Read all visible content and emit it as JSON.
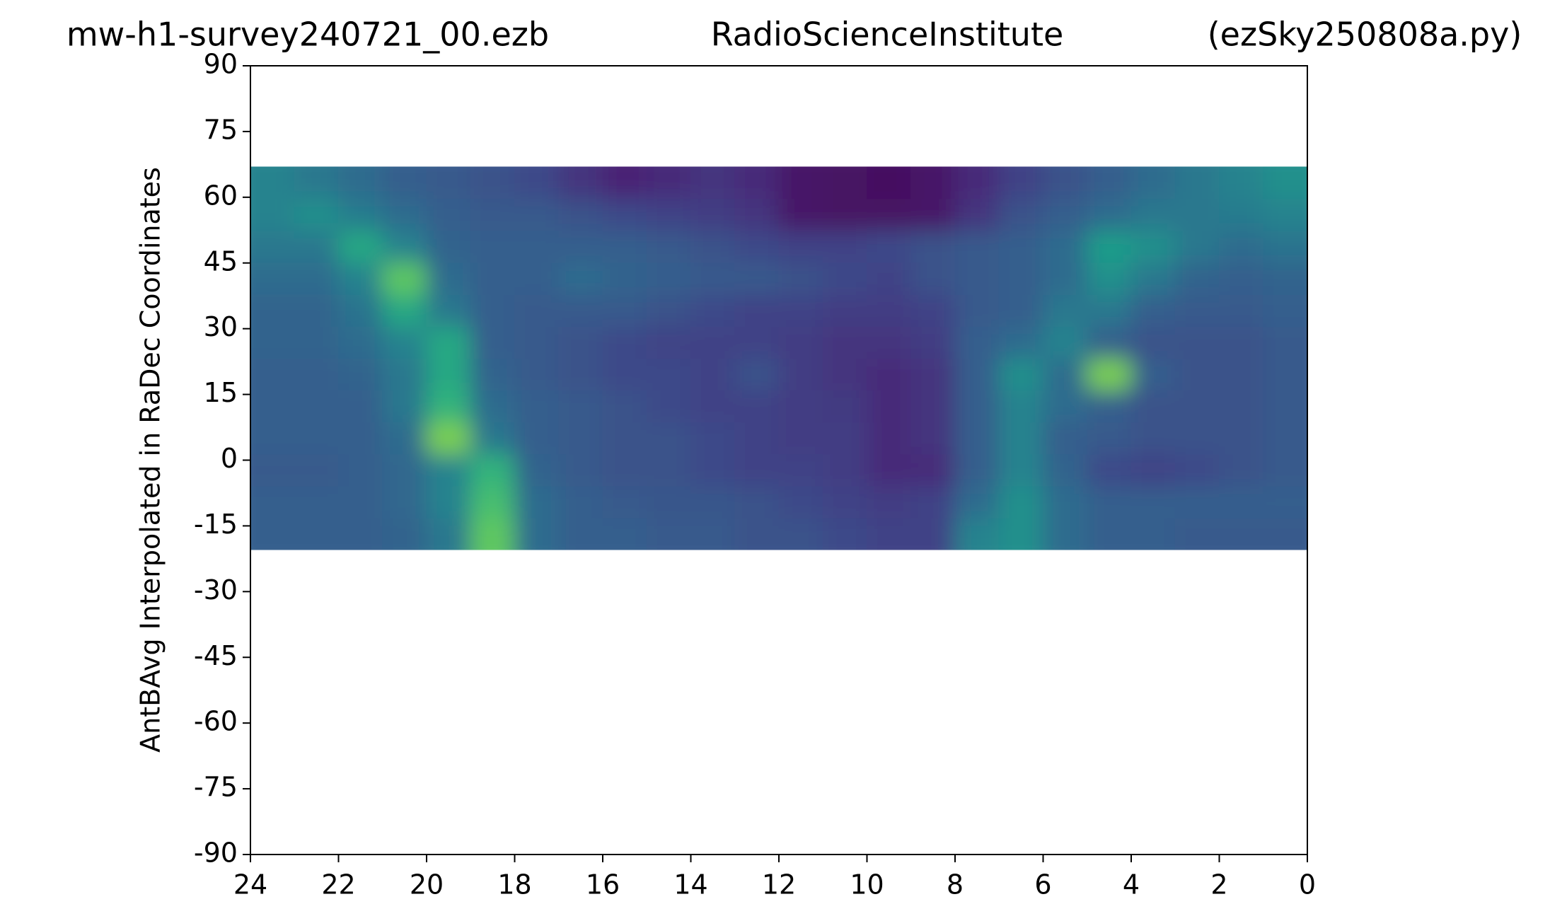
{
  "chart_data": {
    "type": "heatmap",
    "title_left": "mw-h1-survey240721_00.ezb",
    "title": "RadioScienceInstitute",
    "title_right": "(ezSky250808a.py)",
    "ylabel": "AntBAvg Interpolated in RaDec Coordinates",
    "colormap": "viridis",
    "xlim": [
      24,
      0
    ],
    "xticks": [
      24,
      22,
      20,
      18,
      16,
      14,
      12,
      10,
      8,
      6,
      4,
      2,
      0
    ],
    "ylim": [
      -90,
      90
    ],
    "yticks": [
      -90,
      -75,
      -60,
      -45,
      -30,
      -15,
      0,
      15,
      30,
      45,
      60,
      75,
      90
    ],
    "xbins": [
      24,
      23,
      22,
      21,
      20,
      19,
      18,
      17,
      16,
      15,
      14,
      13,
      12,
      11,
      10,
      9,
      8,
      7,
      6,
      5,
      4,
      3,
      2,
      1,
      0
    ],
    "ybins": [
      -20.5,
      -13.2,
      -5.9,
      1.4,
      8.7,
      16,
      23.2,
      30.5,
      37.8,
      45.1,
      52.4,
      59.7,
      67
    ],
    "z": [
      [
        0.3,
        0.3,
        0.3,
        0.32,
        0.4,
        0.75,
        0.35,
        0.3,
        0.3,
        0.28,
        0.28,
        0.25,
        0.25,
        0.22,
        0.2,
        0.2,
        0.45,
        0.5,
        0.35,
        0.3,
        0.3,
        0.28,
        0.28,
        0.28
      ],
      [
        0.3,
        0.3,
        0.3,
        0.33,
        0.45,
        0.7,
        0.35,
        0.3,
        0.28,
        0.27,
        0.27,
        0.25,
        0.22,
        0.2,
        0.18,
        0.2,
        0.35,
        0.5,
        0.35,
        0.3,
        0.3,
        0.3,
        0.3,
        0.3
      ],
      [
        0.28,
        0.28,
        0.3,
        0.33,
        0.45,
        0.65,
        0.32,
        0.28,
        0.25,
        0.25,
        0.22,
        0.2,
        0.2,
        0.18,
        0.12,
        0.12,
        0.3,
        0.45,
        0.32,
        0.22,
        0.2,
        0.22,
        0.25,
        0.28
      ],
      [
        0.3,
        0.3,
        0.3,
        0.35,
        0.8,
        0.4,
        0.3,
        0.28,
        0.25,
        0.25,
        0.22,
        0.2,
        0.18,
        0.18,
        0.12,
        0.15,
        0.3,
        0.45,
        0.3,
        0.28,
        0.25,
        0.25,
        0.25,
        0.28
      ],
      [
        0.3,
        0.3,
        0.3,
        0.4,
        0.65,
        0.35,
        0.3,
        0.28,
        0.25,
        0.22,
        0.2,
        0.2,
        0.18,
        0.17,
        0.12,
        0.15,
        0.3,
        0.45,
        0.35,
        0.3,
        0.25,
        0.25,
        0.25,
        0.28
      ],
      [
        0.3,
        0.3,
        0.32,
        0.4,
        0.6,
        0.32,
        0.28,
        0.25,
        0.22,
        0.22,
        0.2,
        0.25,
        0.18,
        0.15,
        0.12,
        0.15,
        0.3,
        0.5,
        0.35,
        0.8,
        0.3,
        0.25,
        0.25,
        0.28
      ],
      [
        0.32,
        0.32,
        0.35,
        0.45,
        0.6,
        0.3,
        0.28,
        0.25,
        0.22,
        0.2,
        0.2,
        0.2,
        0.18,
        0.15,
        0.15,
        0.18,
        0.3,
        0.35,
        0.45,
        0.3,
        0.25,
        0.25,
        0.25,
        0.28
      ],
      [
        0.32,
        0.32,
        0.38,
        0.6,
        0.4,
        0.3,
        0.28,
        0.28,
        0.28,
        0.25,
        0.22,
        0.2,
        0.2,
        0.18,
        0.18,
        0.2,
        0.28,
        0.3,
        0.4,
        0.4,
        0.3,
        0.28,
        0.28,
        0.3
      ],
      [
        0.35,
        0.35,
        0.45,
        0.75,
        0.35,
        0.3,
        0.3,
        0.35,
        0.32,
        0.3,
        0.28,
        0.28,
        0.25,
        0.22,
        0.2,
        0.25,
        0.28,
        0.3,
        0.35,
        0.5,
        0.4,
        0.32,
        0.3,
        0.32
      ],
      [
        0.4,
        0.4,
        0.6,
        0.45,
        0.32,
        0.3,
        0.3,
        0.3,
        0.3,
        0.28,
        0.25,
        0.22,
        0.2,
        0.2,
        0.22,
        0.25,
        0.28,
        0.3,
        0.35,
        0.55,
        0.5,
        0.4,
        0.35,
        0.38
      ],
      [
        0.45,
        0.5,
        0.42,
        0.35,
        0.3,
        0.28,
        0.28,
        0.25,
        0.22,
        0.2,
        0.18,
        0.15,
        0.06,
        0.05,
        0.05,
        0.06,
        0.15,
        0.25,
        0.3,
        0.35,
        0.4,
        0.4,
        0.42,
        0.45
      ],
      [
        0.45,
        0.4,
        0.35,
        0.3,
        0.28,
        0.25,
        0.22,
        0.15,
        0.1,
        0.12,
        0.15,
        0.12,
        0.06,
        0.05,
        0.04,
        0.06,
        0.12,
        0.2,
        0.25,
        0.3,
        0.35,
        0.4,
        0.45,
        0.5
      ]
    ]
  }
}
